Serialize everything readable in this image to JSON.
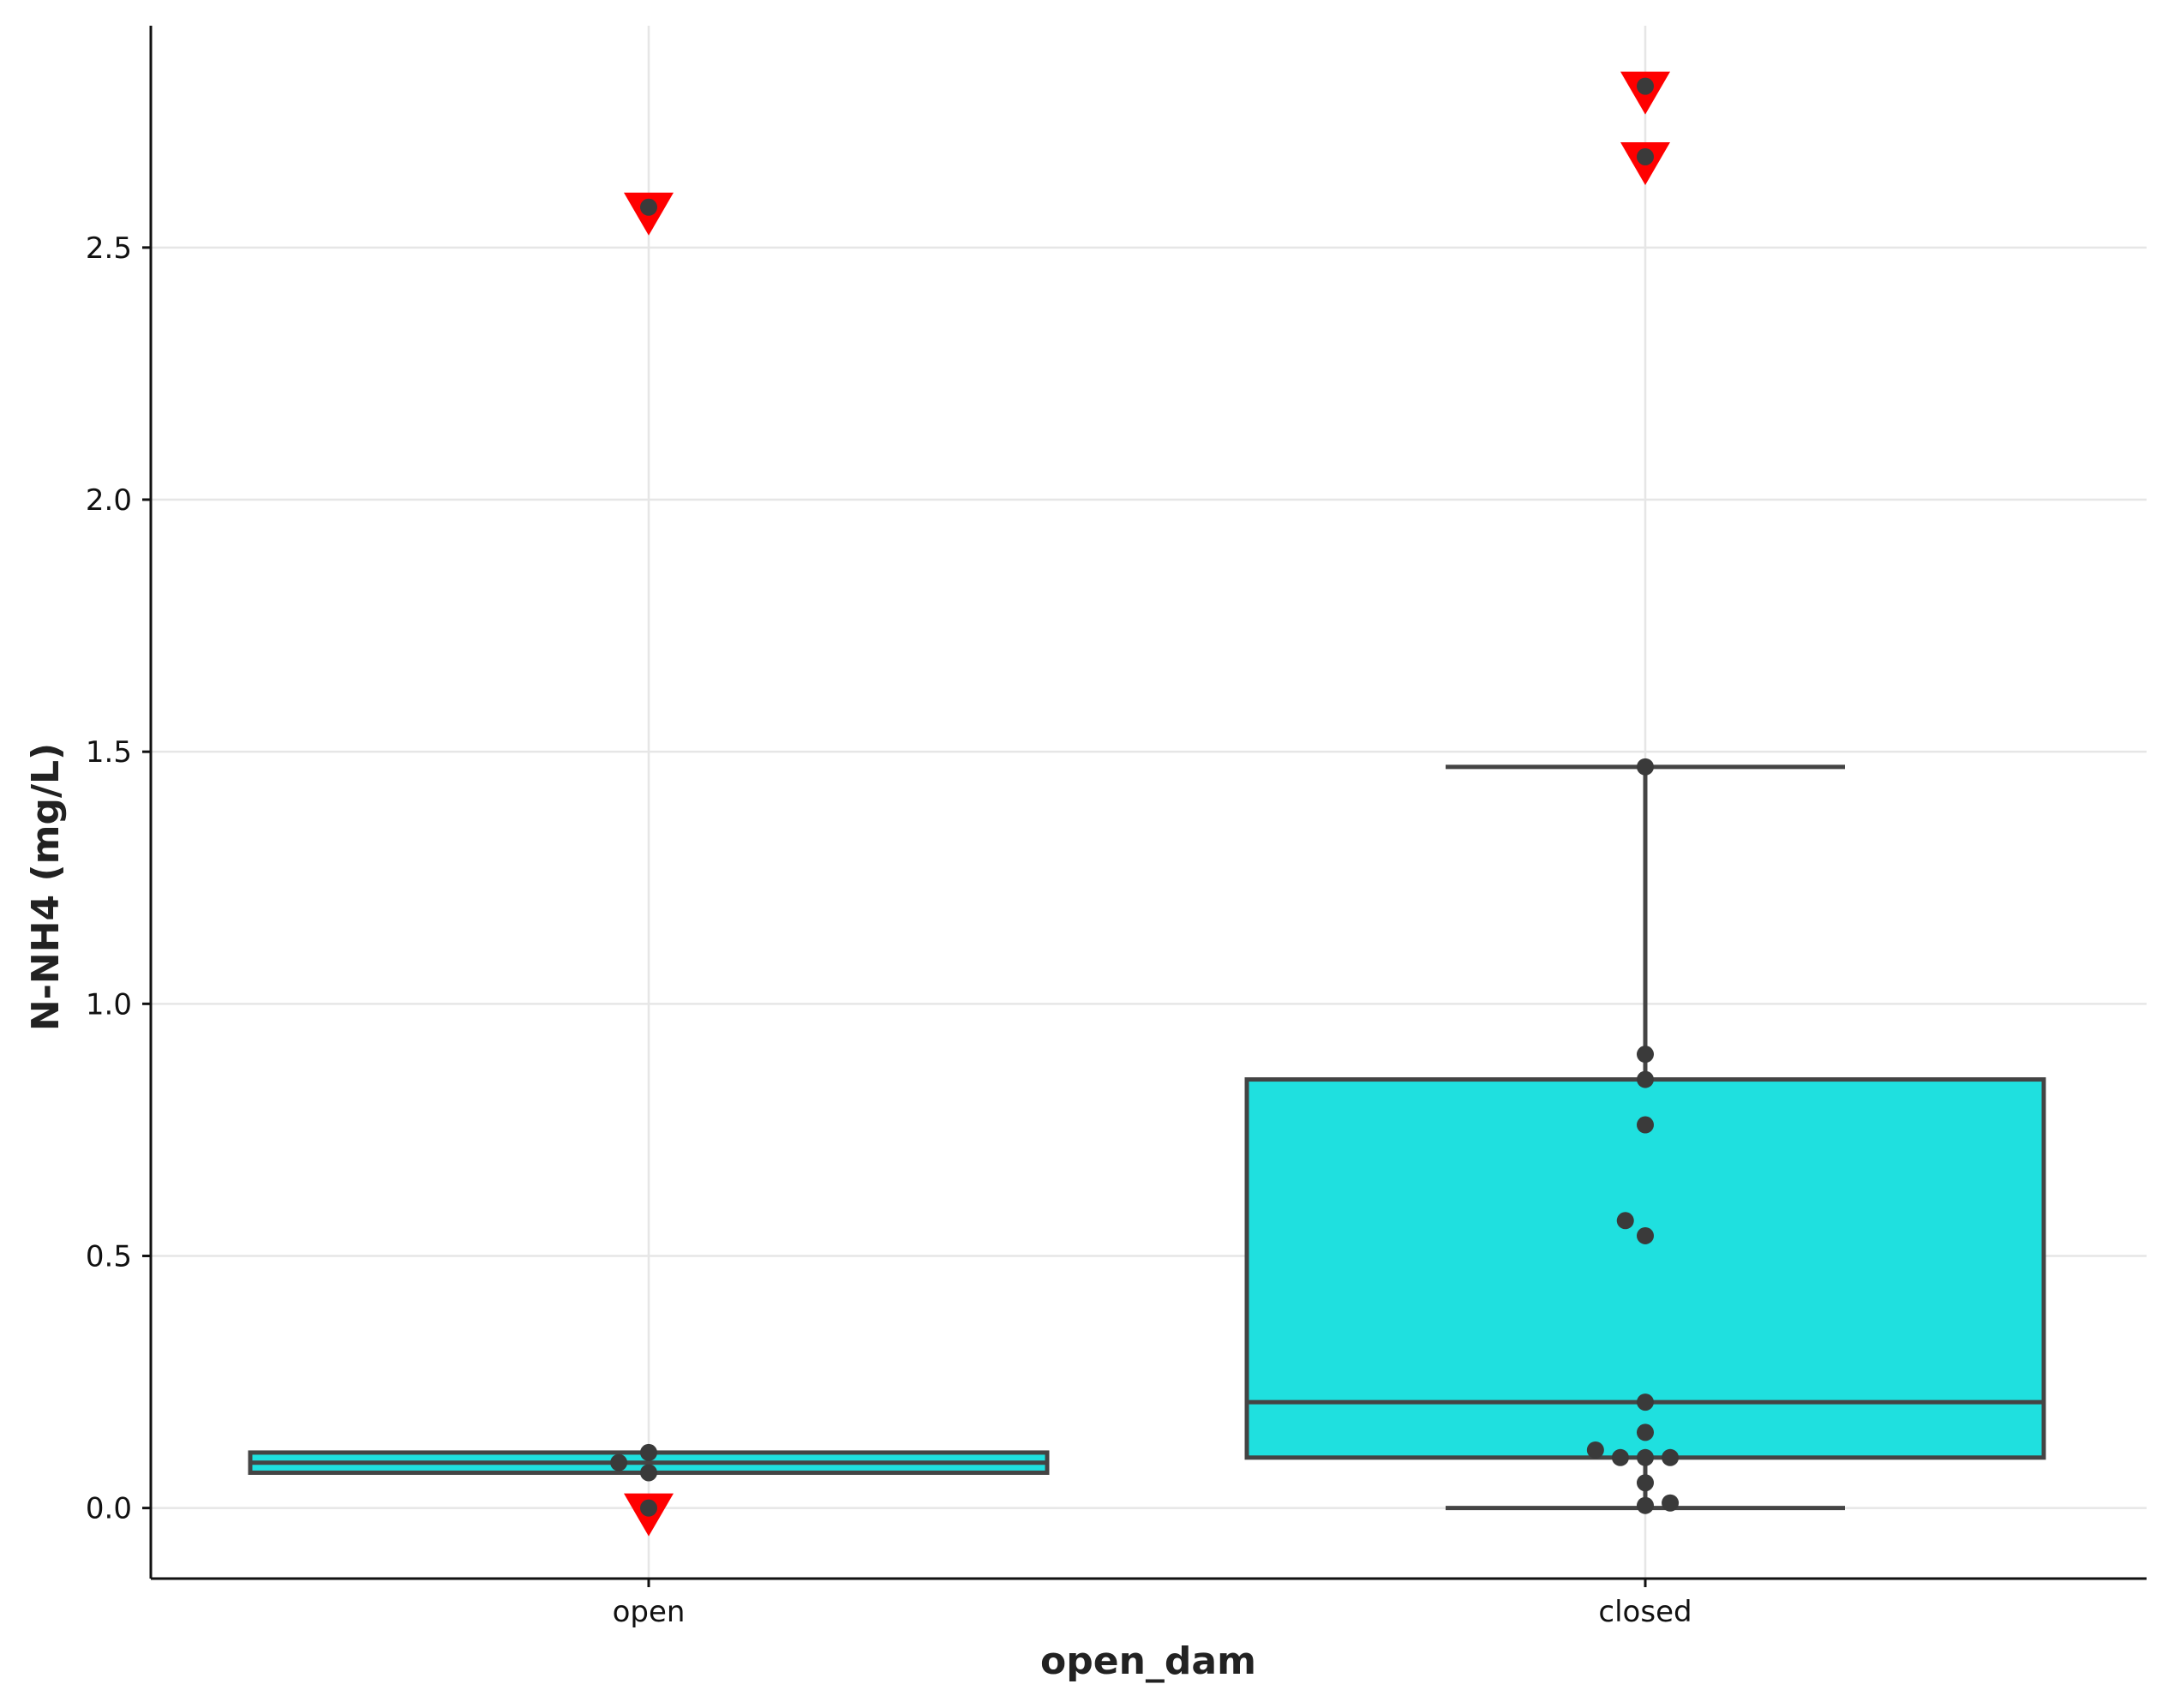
{
  "chart_data": {
    "type": "box",
    "xlabel": "open_dam",
    "ylabel": "N-NH4 (mg/L)",
    "categories": [
      "open",
      "closed"
    ],
    "ylim": [
      -0.14,
      2.94
    ],
    "yticks": [
      0.0,
      0.5,
      1.0,
      1.5,
      2.0,
      2.5
    ],
    "ytick_labels": [
      "0.0",
      "0.5",
      "1.0",
      "1.5",
      "2.0",
      "2.5"
    ],
    "grid": true,
    "box_color": "#1fe0df",
    "outlier_color": "#ff0000",
    "point_color": "#3a3a3a",
    "boxes": [
      {
        "category": "open",
        "q1": 0.07,
        "median": 0.09,
        "q3": 0.11,
        "whisker_low": 0.07,
        "whisker_high": 0.11,
        "outliers": [
          2.58,
          0.0
        ]
      },
      {
        "category": "closed",
        "q1": 0.1,
        "median": 0.21,
        "q3": 0.85,
        "whisker_low": 0.0,
        "whisker_high": 1.47,
        "outliers": [
          2.82,
          2.68
        ]
      }
    ],
    "points": [
      {
        "category": "open",
        "offset": 0.0,
        "y": 2.58
      },
      {
        "category": "open",
        "offset": 0.0,
        "y": 0.11
      },
      {
        "category": "open",
        "offset": -0.03,
        "y": 0.09
      },
      {
        "category": "open",
        "offset": 0.0,
        "y": 0.07
      },
      {
        "category": "open",
        "offset": 0.0,
        "y": 0.0
      },
      {
        "category": "closed",
        "offset": 0.0,
        "y": 2.82
      },
      {
        "category": "closed",
        "offset": 0.0,
        "y": 2.68
      },
      {
        "category": "closed",
        "offset": 0.0,
        "y": 1.47
      },
      {
        "category": "closed",
        "offset": 0.0,
        "y": 0.9
      },
      {
        "category": "closed",
        "offset": 0.0,
        "y": 0.85
      },
      {
        "category": "closed",
        "offset": 0.0,
        "y": 0.76
      },
      {
        "category": "closed",
        "offset": -0.02,
        "y": 0.57
      },
      {
        "category": "closed",
        "offset": 0.0,
        "y": 0.54
      },
      {
        "category": "closed",
        "offset": 0.0,
        "y": 0.21
      },
      {
        "category": "closed",
        "offset": 0.0,
        "y": 0.15
      },
      {
        "category": "closed",
        "offset": -0.05,
        "y": 0.115
      },
      {
        "category": "closed",
        "offset": -0.025,
        "y": 0.1
      },
      {
        "category": "closed",
        "offset": 0.0,
        "y": 0.1
      },
      {
        "category": "closed",
        "offset": 0.025,
        "y": 0.1
      },
      {
        "category": "closed",
        "offset": 0.0,
        "y": 0.05
      },
      {
        "category": "closed",
        "offset": 0.0,
        "y": 0.005
      },
      {
        "category": "closed",
        "offset": 0.025,
        "y": 0.01
      }
    ]
  }
}
